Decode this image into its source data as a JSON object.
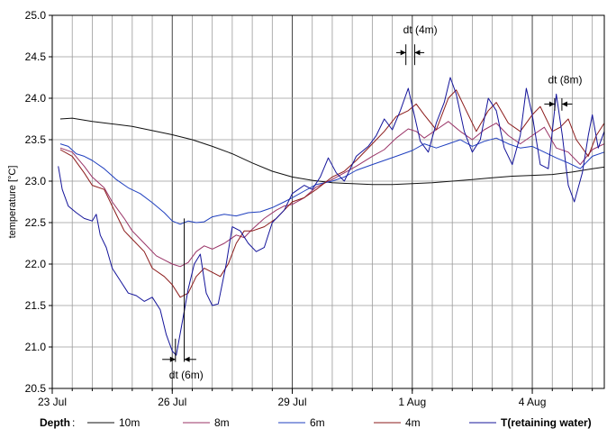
{
  "chart_data": {
    "type": "line",
    "ylabel": "temperature [°C]",
    "xlabel": "",
    "ylim": [
      20.5,
      25.0
    ],
    "xlim": [
      0,
      13.8
    ],
    "x_unit": "days from 23 Jul",
    "x_ticks": [
      {
        "x": 0,
        "label": "23 Jul"
      },
      {
        "x": 3,
        "label": "26 Jul"
      },
      {
        "x": 6,
        "label": "29 Jul"
      },
      {
        "x": 9,
        "label": "1 Aug"
      },
      {
        "x": 12,
        "label": "4 Aug"
      }
    ],
    "x_minor_step": 0.5,
    "y_ticks": [
      20.5,
      21.0,
      21.5,
      22.0,
      22.5,
      23.0,
      23.5,
      24.0,
      24.5,
      25.0
    ],
    "y_tick_labels": [
      "20.5",
      "21.0",
      "21.5",
      "22.0",
      "22.5",
      "23.0",
      "23.5",
      "24.0",
      "24.5",
      "25.0"
    ],
    "grid": true,
    "legend_title": "Depth",
    "series": [
      {
        "name": "10m",
        "color": "#111111",
        "points": [
          [
            0.2,
            23.75
          ],
          [
            0.5,
            23.76
          ],
          [
            1.0,
            23.72
          ],
          [
            1.5,
            23.69
          ],
          [
            2.0,
            23.66
          ],
          [
            2.5,
            23.61
          ],
          [
            3.0,
            23.56
          ],
          [
            3.5,
            23.5
          ],
          [
            4.0,
            23.42
          ],
          [
            4.5,
            23.33
          ],
          [
            5.0,
            23.22
          ],
          [
            5.5,
            23.12
          ],
          [
            6.0,
            23.05
          ],
          [
            6.5,
            23.01
          ],
          [
            7.0,
            22.98
          ],
          [
            7.5,
            22.97
          ],
          [
            8.0,
            22.96
          ],
          [
            8.5,
            22.96
          ],
          [
            9.0,
            22.97
          ],
          [
            9.5,
            22.98
          ],
          [
            10.0,
            23.0
          ],
          [
            10.5,
            23.02
          ],
          [
            11.0,
            23.04
          ],
          [
            11.5,
            23.06
          ],
          [
            12.0,
            23.07
          ],
          [
            12.5,
            23.08
          ],
          [
            13.0,
            23.11
          ],
          [
            13.5,
            23.15
          ],
          [
            13.8,
            23.17
          ]
        ]
      },
      {
        "name": "8m",
        "color": "#993366",
        "points": [
          [
            0.2,
            23.4
          ],
          [
            0.5,
            23.35
          ],
          [
            0.8,
            23.18
          ],
          [
            1.0,
            23.05
          ],
          [
            1.3,
            22.92
          ],
          [
            1.5,
            22.75
          ],
          [
            1.8,
            22.55
          ],
          [
            2.0,
            22.4
          ],
          [
            2.3,
            22.25
          ],
          [
            2.6,
            22.1
          ],
          [
            2.8,
            22.05
          ],
          [
            3.0,
            22.0
          ],
          [
            3.2,
            21.97
          ],
          [
            3.4,
            22.02
          ],
          [
            3.6,
            22.15
          ],
          [
            3.8,
            22.22
          ],
          [
            4.0,
            22.18
          ],
          [
            4.3,
            22.25
          ],
          [
            4.6,
            22.35
          ],
          [
            4.8,
            22.32
          ],
          [
            5.0,
            22.42
          ],
          [
            5.3,
            22.55
          ],
          [
            5.6,
            22.65
          ],
          [
            5.8,
            22.7
          ],
          [
            6.0,
            22.72
          ],
          [
            6.3,
            22.8
          ],
          [
            6.6,
            22.93
          ],
          [
            7.0,
            23.02
          ],
          [
            7.3,
            23.1
          ],
          [
            7.6,
            23.18
          ],
          [
            8.0,
            23.3
          ],
          [
            8.3,
            23.38
          ],
          [
            8.6,
            23.52
          ],
          [
            8.9,
            23.63
          ],
          [
            9.1,
            23.6
          ],
          [
            9.3,
            23.52
          ],
          [
            9.6,
            23.62
          ],
          [
            9.9,
            23.72
          ],
          [
            10.2,
            23.6
          ],
          [
            10.5,
            23.5
          ],
          [
            10.8,
            23.62
          ],
          [
            11.1,
            23.7
          ],
          [
            11.4,
            23.55
          ],
          [
            11.7,
            23.45
          ],
          [
            12.0,
            23.55
          ],
          [
            12.3,
            23.65
          ],
          [
            12.6,
            23.4
          ],
          [
            12.9,
            23.35
          ],
          [
            13.2,
            23.2
          ],
          [
            13.5,
            23.38
          ],
          [
            13.8,
            23.45
          ]
        ]
      },
      {
        "name": "6m",
        "color": "#1f3fbf",
        "points": [
          [
            0.2,
            23.45
          ],
          [
            0.4,
            23.42
          ],
          [
            0.6,
            23.33
          ],
          [
            0.8,
            23.3
          ],
          [
            1.0,
            23.25
          ],
          [
            1.3,
            23.15
          ],
          [
            1.6,
            23.02
          ],
          [
            1.9,
            22.92
          ],
          [
            2.2,
            22.85
          ],
          [
            2.5,
            22.74
          ],
          [
            2.8,
            22.62
          ],
          [
            3.0,
            22.52
          ],
          [
            3.2,
            22.48
          ],
          [
            3.4,
            22.52
          ],
          [
            3.6,
            22.5
          ],
          [
            3.8,
            22.51
          ],
          [
            4.0,
            22.57
          ],
          [
            4.3,
            22.6
          ],
          [
            4.6,
            22.58
          ],
          [
            4.9,
            22.62
          ],
          [
            5.2,
            22.63
          ],
          [
            5.5,
            22.68
          ],
          [
            5.8,
            22.75
          ],
          [
            6.0,
            22.8
          ],
          [
            6.3,
            22.88
          ],
          [
            6.6,
            22.96
          ],
          [
            7.0,
            23.0
          ],
          [
            7.3,
            23.05
          ],
          [
            7.6,
            23.13
          ],
          [
            8.0,
            23.2
          ],
          [
            8.3,
            23.25
          ],
          [
            8.6,
            23.3
          ],
          [
            9.0,
            23.37
          ],
          [
            9.3,
            23.45
          ],
          [
            9.6,
            23.4
          ],
          [
            9.9,
            23.45
          ],
          [
            10.2,
            23.5
          ],
          [
            10.5,
            23.42
          ],
          [
            10.8,
            23.48
          ],
          [
            11.1,
            23.52
          ],
          [
            11.4,
            23.45
          ],
          [
            11.7,
            23.4
          ],
          [
            12.0,
            23.42
          ],
          [
            12.3,
            23.35
          ],
          [
            12.6,
            23.28
          ],
          [
            12.9,
            23.22
          ],
          [
            13.2,
            23.15
          ],
          [
            13.5,
            23.3
          ],
          [
            13.8,
            23.35
          ]
        ]
      },
      {
        "name": "4m",
        "color": "#8b1a1a",
        "points": [
          [
            0.2,
            23.38
          ],
          [
            0.5,
            23.3
          ],
          [
            0.8,
            23.1
          ],
          [
            1.0,
            22.95
          ],
          [
            1.3,
            22.9
          ],
          [
            1.5,
            22.7
          ],
          [
            1.8,
            22.4
          ],
          [
            2.0,
            22.3
          ],
          [
            2.3,
            22.15
          ],
          [
            2.5,
            21.95
          ],
          [
            2.8,
            21.85
          ],
          [
            3.0,
            21.75
          ],
          [
            3.2,
            21.6
          ],
          [
            3.4,
            21.65
          ],
          [
            3.6,
            21.85
          ],
          [
            3.8,
            21.95
          ],
          [
            4.0,
            21.9
          ],
          [
            4.2,
            21.85
          ],
          [
            4.4,
            22.0
          ],
          [
            4.6,
            22.25
          ],
          [
            4.8,
            22.4
          ],
          [
            5.0,
            22.4
          ],
          [
            5.3,
            22.45
          ],
          [
            5.6,
            22.55
          ],
          [
            5.8,
            22.65
          ],
          [
            6.0,
            22.75
          ],
          [
            6.3,
            22.8
          ],
          [
            6.6,
            22.9
          ],
          [
            7.0,
            23.05
          ],
          [
            7.3,
            23.12
          ],
          [
            7.6,
            23.25
          ],
          [
            8.0,
            23.45
          ],
          [
            8.3,
            23.6
          ],
          [
            8.6,
            23.78
          ],
          [
            8.9,
            23.85
          ],
          [
            9.1,
            23.93
          ],
          [
            9.3,
            23.8
          ],
          [
            9.6,
            23.62
          ],
          [
            9.9,
            24.0
          ],
          [
            10.1,
            24.1
          ],
          [
            10.3,
            23.9
          ],
          [
            10.6,
            23.6
          ],
          [
            10.9,
            23.85
          ],
          [
            11.1,
            23.95
          ],
          [
            11.4,
            23.7
          ],
          [
            11.7,
            23.6
          ],
          [
            12.0,
            23.8
          ],
          [
            12.2,
            23.9
          ],
          [
            12.5,
            23.6
          ],
          [
            12.7,
            23.65
          ],
          [
            12.9,
            23.75
          ],
          [
            13.1,
            23.5
          ],
          [
            13.4,
            23.3
          ],
          [
            13.6,
            23.55
          ],
          [
            13.8,
            23.7
          ]
        ]
      },
      {
        "name": "T(retaining water)",
        "color": "#14149a",
        "points": [
          [
            0.15,
            23.18
          ],
          [
            0.25,
            22.9
          ],
          [
            0.4,
            22.7
          ],
          [
            0.6,
            22.62
          ],
          [
            0.8,
            22.55
          ],
          [
            1.0,
            22.52
          ],
          [
            1.1,
            22.6
          ],
          [
            1.2,
            22.35
          ],
          [
            1.35,
            22.2
          ],
          [
            1.5,
            21.95
          ],
          [
            1.7,
            21.8
          ],
          [
            1.9,
            21.65
          ],
          [
            2.1,
            21.62
          ],
          [
            2.3,
            21.55
          ],
          [
            2.5,
            21.6
          ],
          [
            2.7,
            21.45
          ],
          [
            2.85,
            21.15
          ],
          [
            3.0,
            20.95
          ],
          [
            3.1,
            20.9
          ],
          [
            3.25,
            21.3
          ],
          [
            3.4,
            21.7
          ],
          [
            3.55,
            22.0
          ],
          [
            3.7,
            22.12
          ],
          [
            3.85,
            21.65
          ],
          [
            4.0,
            21.5
          ],
          [
            4.15,
            21.52
          ],
          [
            4.35,
            22.0
          ],
          [
            4.5,
            22.45
          ],
          [
            4.7,
            22.4
          ],
          [
            4.9,
            22.25
          ],
          [
            5.1,
            22.15
          ],
          [
            5.3,
            22.2
          ],
          [
            5.5,
            22.5
          ],
          [
            5.8,
            22.65
          ],
          [
            6.0,
            22.85
          ],
          [
            6.3,
            22.95
          ],
          [
            6.5,
            22.9
          ],
          [
            6.7,
            23.05
          ],
          [
            6.9,
            23.28
          ],
          [
            7.1,
            23.1
          ],
          [
            7.3,
            23.0
          ],
          [
            7.6,
            23.3
          ],
          [
            7.9,
            23.42
          ],
          [
            8.1,
            23.55
          ],
          [
            8.3,
            23.75
          ],
          [
            8.5,
            23.62
          ],
          [
            8.7,
            23.85
          ],
          [
            8.9,
            24.12
          ],
          [
            9.05,
            23.8
          ],
          [
            9.2,
            23.48
          ],
          [
            9.4,
            23.35
          ],
          [
            9.6,
            23.7
          ],
          [
            9.8,
            23.95
          ],
          [
            9.95,
            24.25
          ],
          [
            10.1,
            24.05
          ],
          [
            10.3,
            23.6
          ],
          [
            10.5,
            23.35
          ],
          [
            10.7,
            23.5
          ],
          [
            10.9,
            24.0
          ],
          [
            11.1,
            23.85
          ],
          [
            11.3,
            23.4
          ],
          [
            11.5,
            23.2
          ],
          [
            11.7,
            23.55
          ],
          [
            11.85,
            24.12
          ],
          [
            12.0,
            23.8
          ],
          [
            12.2,
            23.2
          ],
          [
            12.4,
            23.15
          ],
          [
            12.6,
            24.05
          ],
          [
            12.75,
            23.55
          ],
          [
            12.9,
            22.95
          ],
          [
            13.05,
            22.75
          ],
          [
            13.25,
            23.1
          ],
          [
            13.4,
            23.55
          ],
          [
            13.5,
            23.8
          ],
          [
            13.65,
            23.4
          ],
          [
            13.8,
            23.6
          ]
        ]
      }
    ],
    "annotations": [
      {
        "label": "dt (4m)",
        "x": 9.2,
        "y": 24.78,
        "arrows": [
          [
            8.6,
            24.55,
            8.84,
            24.55
          ],
          [
            9.3,
            24.55,
            9.06,
            24.55
          ]
        ],
        "vlines": [
          [
            8.84,
            24.4,
            24.65
          ],
          [
            9.06,
            24.4,
            24.65
          ]
        ]
      },
      {
        "label": "dt (8m)",
        "x": 12.82,
        "y": 24.18,
        "arrows": [
          [
            12.3,
            23.93,
            12.56,
            23.93
          ],
          [
            13.0,
            23.93,
            12.74,
            23.93
          ]
        ],
        "vlines": [
          [
            12.56,
            23.85,
            24.0
          ],
          [
            12.74,
            23.85,
            24.0
          ]
        ]
      },
      {
        "label": "dt (6m)",
        "x": 3.35,
        "y": 20.62,
        "arrows": [
          [
            2.75,
            20.85,
            3.08,
            20.85
          ],
          [
            3.6,
            20.85,
            3.3,
            20.85
          ]
        ],
        "vlines": [
          [
            3.08,
            20.82,
            21.1
          ],
          [
            3.3,
            20.82,
            22.55
          ]
        ]
      }
    ]
  }
}
